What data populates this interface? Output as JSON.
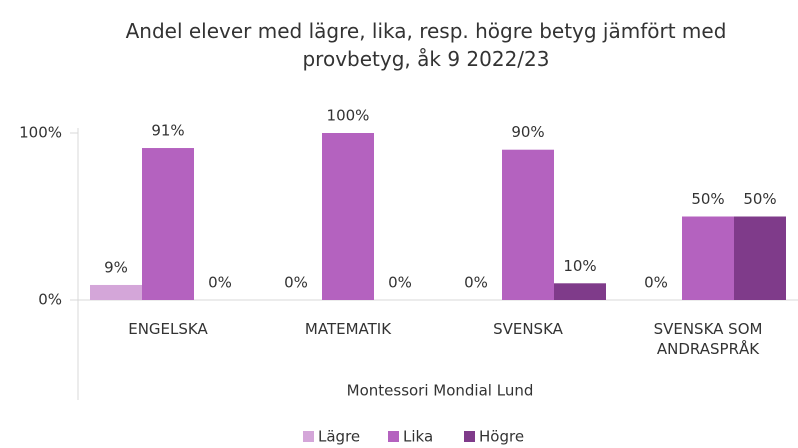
{
  "chart_data": {
    "type": "bar",
    "title": "Andel elever med lägre, lika, resp. högre betyg jämfört med provbetyg, åk 9 2022/23",
    "x_label": "Montessori Mondial Lund",
    "categories": [
      "ENGELSKA",
      "MATEMATIK",
      "SVENSKA",
      "SVENSKA SOM ANDRASPRÅK"
    ],
    "series": [
      {
        "name": "Lägre",
        "color": "#d4a6d9",
        "values": [
          9,
          0,
          0,
          0
        ],
        "value_labels": [
          "9%",
          "0%",
          "0%",
          "0%"
        ]
      },
      {
        "name": "Lika",
        "color": "#b462bf",
        "values": [
          91,
          100,
          90,
          50
        ],
        "value_labels": [
          "91%",
          "100%",
          "90%",
          "50%"
        ]
      },
      {
        "name": "Högre",
        "color": "#7f3b8a",
        "values": [
          0,
          0,
          10,
          50
        ],
        "value_labels": [
          "0%",
          "0%",
          "10%",
          "50%"
        ]
      }
    ],
    "ylim": [
      0,
      100
    ],
    "yticks": [
      {
        "value": 0,
        "label": "0%"
      },
      {
        "value": 100,
        "label": "100%"
      }
    ],
    "legend": "bottom"
  }
}
